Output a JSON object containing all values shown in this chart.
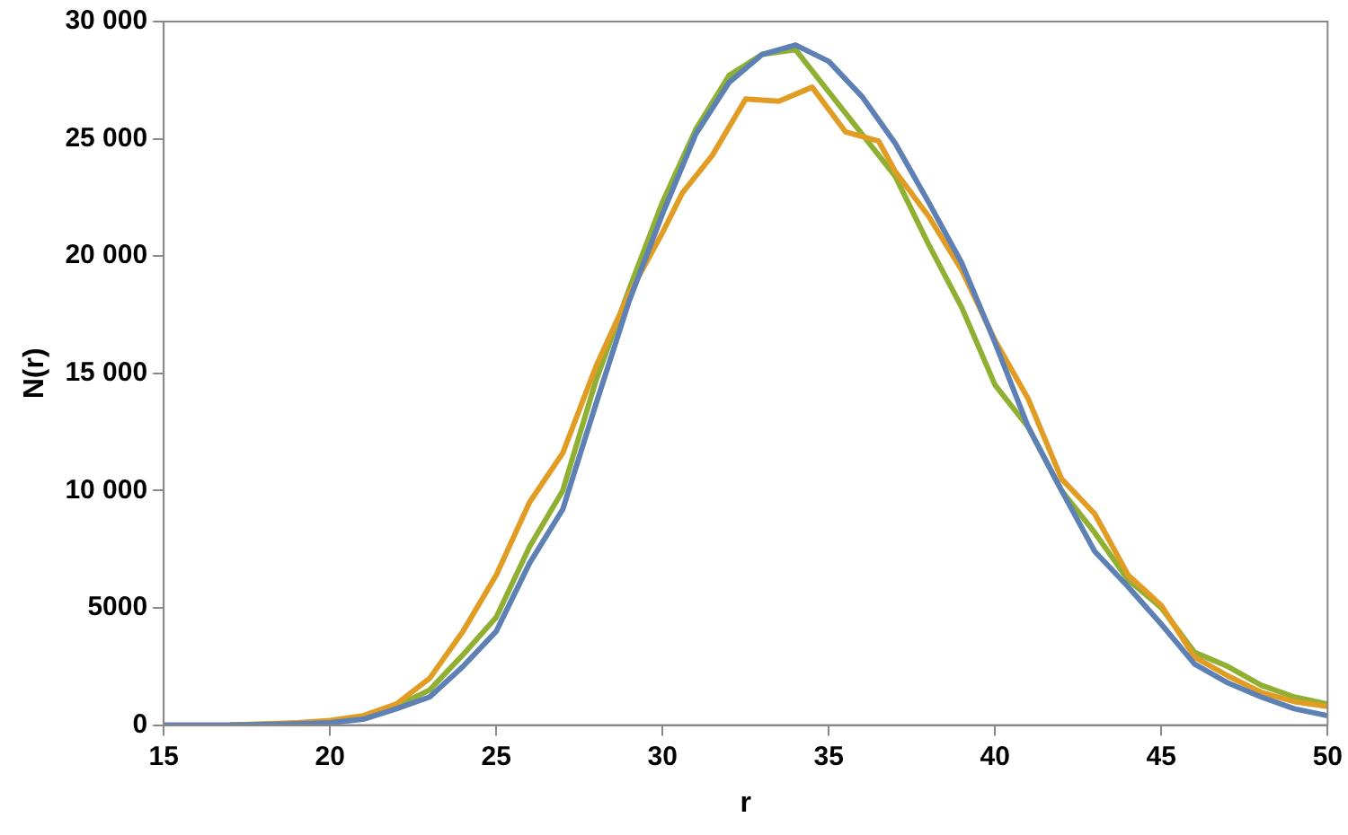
{
  "chart_data": {
    "type": "line",
    "xlabel": "r",
    "ylabel": "N(r)",
    "xlim": [
      15,
      50
    ],
    "ylim": [
      0,
      30000
    ],
    "xticks": [
      15,
      20,
      25,
      30,
      35,
      40,
      45,
      50
    ],
    "yticks": [
      0,
      5000,
      {
        "value": 10000,
        "label": "10 000"
      },
      {
        "value": 15000,
        "label": "15 000"
      },
      {
        "value": 20000,
        "label": "20 000"
      },
      {
        "value": 25000,
        "label": "25 000"
      },
      {
        "value": 30000,
        "label": "30 000"
      }
    ],
    "grid": false,
    "legend": false,
    "marker": "none",
    "line_style": "solid",
    "x": [
      15,
      16,
      17,
      18,
      19,
      20,
      21,
      22,
      23,
      24,
      25,
      26,
      27,
      28,
      29,
      30,
      31,
      32,
      33,
      34,
      35,
      36,
      37,
      38,
      39,
      40,
      41,
      42,
      43,
      44,
      45,
      46,
      47,
      48,
      49,
      50
    ],
    "series": [
      {
        "color": "#5e81b5",
        "values": [
          0,
          0,
          0,
          20,
          50,
          100,
          250,
          700,
          1200,
          2500,
          4000,
          6900,
          9200,
          13700,
          18100,
          21800,
          25200,
          27400,
          28600,
          29000,
          28300,
          26800,
          24800,
          22300,
          19700,
          16300,
          12700,
          10000,
          7400,
          5900,
          4300,
          2600,
          1800,
          1200,
          700,
          400
        ]
      },
      {
        "color": "#e19c24",
        "x": [
          17,
          18,
          19,
          20,
          21,
          22,
          23,
          24,
          25,
          26,
          27,
          28,
          29,
          30,
          30.6,
          31.5,
          32.5,
          33.5,
          34.5,
          35.5,
          36.5,
          37,
          38,
          39,
          40,
          41,
          42,
          43,
          44,
          45,
          46,
          47,
          48,
          49,
          50
        ],
        "values": [
          0,
          50,
          100,
          200,
          400,
          900,
          2000,
          4000,
          6400,
          9500,
          11600,
          15300,
          18400,
          21000,
          22700,
          24300,
          26700,
          26600,
          27200,
          25300,
          24900,
          23600,
          21700,
          19400,
          16400,
          13900,
          10500,
          9000,
          6400,
          5100,
          2900,
          2100,
          1400,
          1000,
          800
        ]
      },
      {
        "color": "#8fb032",
        "x": [
          17,
          18,
          19,
          20,
          21,
          22,
          23,
          24,
          25,
          26,
          27,
          28,
          29,
          30,
          31,
          32,
          33,
          34,
          35,
          36,
          37,
          38,
          39,
          40,
          41,
          42,
          43,
          44,
          45,
          46,
          47,
          48,
          49,
          50
        ],
        "values": [
          0,
          30,
          80,
          150,
          350,
          800,
          1500,
          3000,
          4600,
          7600,
          10000,
          14700,
          18600,
          22300,
          25400,
          27700,
          28600,
          28800,
          27000,
          25200,
          23400,
          20500,
          17800,
          14500,
          12700,
          10000,
          8200,
          6200,
          5000,
          3100,
          2500,
          1700,
          1200,
          900
        ]
      }
    ]
  }
}
